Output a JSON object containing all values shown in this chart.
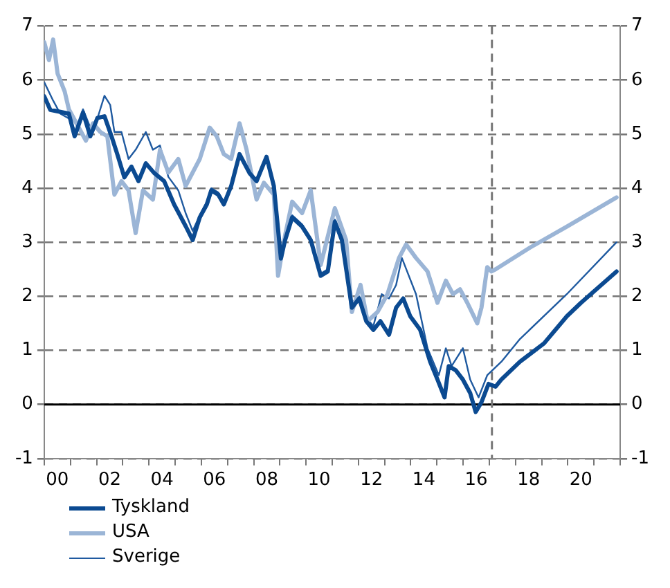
{
  "chart_data": {
    "type": "line",
    "xlim": [
      -0.5,
      21.5
    ],
    "xticks": [
      {
        "value": -0.5,
        "label": null
      },
      {
        "value": 0,
        "label": "00"
      },
      {
        "value": 0.5,
        "label": null
      },
      {
        "value": 1.5,
        "label": null
      },
      {
        "value": 2,
        "label": "02"
      },
      {
        "value": 2.5,
        "label": null
      },
      {
        "value": 3.5,
        "label": null
      },
      {
        "value": 4,
        "label": "04"
      },
      {
        "value": 4.5,
        "label": null
      },
      {
        "value": 5.5,
        "label": null
      },
      {
        "value": 6,
        "label": "06"
      },
      {
        "value": 6.5,
        "label": null
      },
      {
        "value": 7.5,
        "label": null
      },
      {
        "value": 8,
        "label": "08"
      },
      {
        "value": 8.5,
        "label": null
      },
      {
        "value": 9.5,
        "label": null
      },
      10,
      {
        "value": 10.5,
        "label": null
      },
      {
        "value": 11.5,
        "label": null
      },
      12,
      {
        "value": 12.5,
        "label": null
      },
      {
        "value": 13.5,
        "label": null
      },
      14,
      {
        "value": 14.5,
        "label": null
      },
      {
        "value": 15.5,
        "label": null
      },
      16,
      {
        "value": 16.5,
        "label": null
      },
      {
        "value": 17.5,
        "label": null
      },
      18,
      {
        "value": 18.5,
        "label": null
      },
      {
        "value": 19.5,
        "label": null
      },
      20,
      {
        "value": 20.5,
        "label": null
      },
      {
        "value": 21.5,
        "label": null
      }
    ],
    "ylim": [
      -1,
      7
    ],
    "yticks": [
      -1,
      0,
      1,
      2,
      3,
      4,
      5,
      6,
      7
    ],
    "y2lim": [
      -1,
      7
    ],
    "y2ticks": [
      -1,
      0,
      1,
      2,
      3,
      4,
      5,
      6,
      7
    ],
    "grid": "y",
    "legend": "bottom left",
    "ref_lines": [
      {
        "axis": "y",
        "value": 0,
        "color": "#000000",
        "line_style": "solid"
      },
      {
        "axis": "x",
        "value": 16.6,
        "color": "#777777",
        "line_style": "dashed"
      }
    ],
    "series": [
      {
        "name": "Tyskland",
        "color": "#0b4a91",
        "x": [
          -0.5,
          -0.27,
          0.44,
          0.66,
          0.98,
          1.26,
          1.53,
          1.8,
          2.07,
          2.29,
          2.56,
          2.83,
          3.1,
          3.38,
          3.7,
          4.08,
          4.46,
          4.9,
          5.17,
          5.44,
          5.71,
          5.88,
          6.15,
          6.36,
          6.64,
          6.96,
          7.34,
          7.61,
          7.99,
          8.27,
          8.54,
          8.7,
          8.97,
          9.35,
          9.68,
          10.06,
          10.33,
          10.6,
          10.87,
          11.25,
          11.53,
          11.8,
          12.07,
          12.34,
          12.67,
          12.94,
          13.21,
          13.48,
          13.86,
          14.24,
          14.52,
          14.79,
          14.95,
          15.22,
          15.49,
          15.77,
          15.98,
          16.2,
          16.47,
          16.74,
          16.96,
          17.67,
          18.59,
          19.46,
          20.0,
          21.36
        ],
        "values": [
          5.7,
          5.45,
          5.38,
          4.96,
          5.4,
          4.96,
          5.3,
          5.33,
          4.96,
          4.63,
          4.2,
          4.4,
          4.13,
          4.46,
          4.28,
          4.13,
          3.7,
          3.3,
          3.04,
          3.46,
          3.7,
          3.96,
          3.88,
          3.7,
          4.04,
          4.63,
          4.28,
          4.13,
          4.58,
          4.04,
          2.7,
          3.04,
          3.46,
          3.29,
          3.04,
          2.38,
          2.46,
          3.38,
          3.04,
          1.79,
          1.96,
          1.54,
          1.38,
          1.54,
          1.29,
          1.79,
          1.96,
          1.63,
          1.38,
          0.79,
          0.46,
          0.13,
          0.71,
          0.63,
          0.46,
          0.21,
          -0.14,
          0.04,
          0.38,
          0.33,
          0.46,
          0.79,
          1.13,
          1.63,
          1.88,
          2.46
        ]
      },
      {
        "name": "USA",
        "color": "#9bb5d6",
        "x": [
          -0.5,
          -0.32,
          -0.16,
          0.01,
          0.28,
          0.44,
          0.82,
          1.09,
          1.36,
          1.64,
          1.91,
          2.18,
          2.45,
          2.72,
          2.99,
          3.27,
          3.65,
          3.92,
          4.24,
          4.62,
          4.9,
          5.17,
          5.44,
          5.82,
          6.09,
          6.36,
          6.64,
          6.96,
          7.23,
          7.61,
          7.89,
          8.27,
          8.43,
          8.7,
          8.97,
          9.35,
          9.68,
          10.06,
          10.6,
          11.03,
          11.25,
          11.58,
          11.85,
          12.23,
          12.61,
          13.05,
          13.32,
          13.7,
          14.14,
          14.52,
          14.84,
          15.11,
          15.38,
          15.66,
          16.04,
          16.2,
          16.42,
          16.58,
          16.74,
          18.05,
          19.46,
          21.36
        ],
        "values": [
          6.7,
          6.37,
          6.75,
          6.12,
          5.79,
          5.46,
          5.12,
          4.88,
          5.2,
          5.04,
          4.96,
          3.88,
          4.13,
          3.96,
          3.17,
          3.96,
          3.79,
          4.71,
          4.29,
          4.54,
          4.04,
          4.29,
          4.54,
          5.12,
          4.96,
          4.63,
          4.54,
          5.2,
          4.71,
          3.79,
          4.1,
          3.88,
          2.38,
          3.13,
          3.75,
          3.54,
          3.96,
          2.58,
          3.63,
          3.04,
          1.71,
          2.21,
          1.54,
          1.71,
          2.04,
          2.71,
          2.96,
          2.71,
          2.46,
          1.88,
          2.29,
          2.04,
          2.13,
          1.88,
          1.5,
          1.79,
          2.54,
          2.46,
          2.5,
          2.9,
          3.29,
          3.83
        ]
      },
      {
        "name": "Sverige",
        "color": "#1f5aa0",
        "x": [
          -0.5,
          -0.16,
          0.11,
          0.44,
          0.71,
          0.98,
          1.26,
          1.53,
          1.8,
          2.02,
          2.18,
          2.45,
          2.72,
          2.99,
          3.38,
          3.65,
          3.92,
          4.24,
          4.62,
          4.9,
          5.17,
          5.44,
          5.71,
          5.88,
          6.15,
          6.36,
          6.64,
          6.96,
          7.34,
          7.61,
          7.99,
          8.27,
          8.54,
          8.7,
          8.97,
          9.35,
          9.68,
          10.06,
          10.33,
          10.6,
          10.87,
          11.25,
          11.53,
          11.8,
          12.07,
          12.39,
          12.67,
          12.94,
          13.16,
          13.7,
          14.14,
          14.57,
          14.84,
          15.06,
          15.49,
          15.77,
          16.09,
          16.42,
          16.96,
          17.67,
          19.46,
          21.36
        ],
        "values": [
          5.96,
          5.62,
          5.38,
          5.29,
          5.04,
          5.46,
          5.12,
          5.29,
          5.71,
          5.54,
          5.04,
          5.04,
          4.54,
          4.71,
          5.04,
          4.71,
          4.79,
          4.21,
          3.96,
          3.54,
          3.21,
          3.5,
          3.75,
          4.0,
          3.92,
          3.75,
          4.08,
          4.6,
          4.3,
          4.15,
          4.54,
          4.0,
          2.8,
          3.1,
          3.5,
          3.33,
          3.08,
          2.42,
          2.5,
          3.42,
          3.1,
          1.88,
          2.0,
          1.6,
          1.45,
          2.04,
          1.96,
          2.21,
          2.71,
          2.04,
          1.04,
          0.54,
          1.04,
          0.71,
          1.04,
          0.46,
          0.13,
          0.54,
          0.79,
          1.21,
          2.04,
          3.0
        ]
      }
    ]
  }
}
